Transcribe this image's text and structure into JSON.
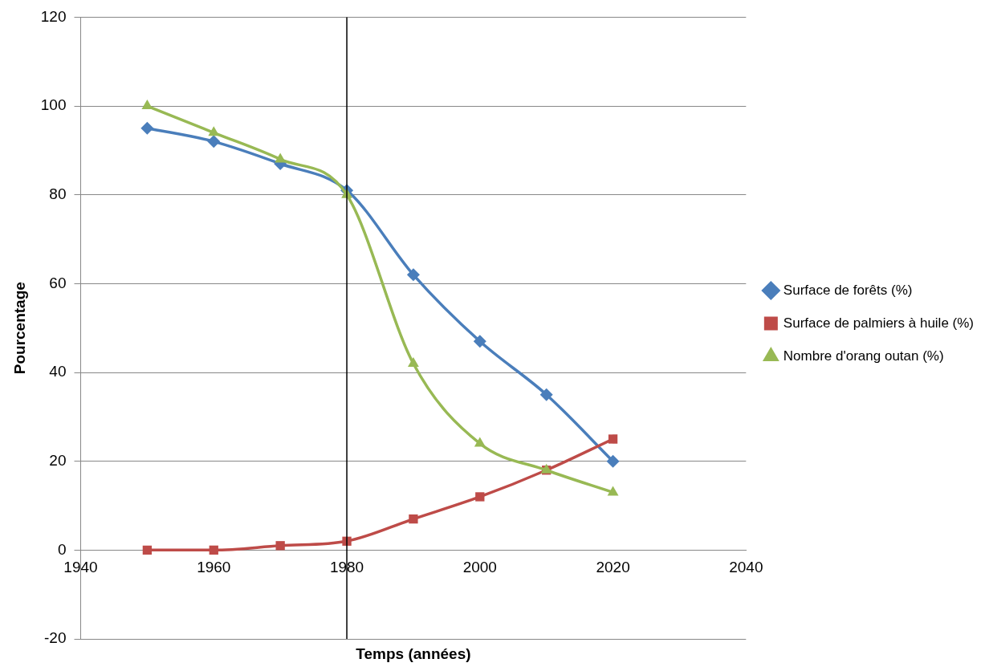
{
  "chart_data": {
    "type": "line",
    "xlabel": "Temps (années)",
    "ylabel": "Pourcentage",
    "x": [
      1950,
      1960,
      1970,
      1980,
      1990,
      2000,
      2010,
      2020
    ],
    "series": [
      {
        "name": "Surface de forêts (%)",
        "color": "#4a7ebb",
        "marker": "diamond",
        "values": [
          95,
          92,
          87,
          81,
          62,
          47,
          35,
          20
        ]
      },
      {
        "name": "Surface de palmiers à huile (%)",
        "color": "#be4b48",
        "marker": "square",
        "values": [
          0,
          0,
          1,
          2,
          7,
          12,
          18,
          25
        ]
      },
      {
        "name": "Nombre d'orang outan (%)",
        "color": "#98b954",
        "marker": "triangle",
        "values": [
          100,
          94,
          88,
          80,
          42,
          24,
          18,
          13
        ]
      }
    ],
    "xlim": [
      1940,
      2040
    ],
    "xticks": [
      1940,
      1960,
      1980,
      2000,
      2020,
      2040
    ],
    "ylim": [
      -20,
      120
    ],
    "yticks": [
      -20,
      0,
      20,
      40,
      60,
      80,
      100,
      120
    ],
    "ref_lines": [
      {
        "axis": "x",
        "value": 1980,
        "color": "#000000"
      }
    ],
    "grid": "y",
    "legend": "right"
  }
}
